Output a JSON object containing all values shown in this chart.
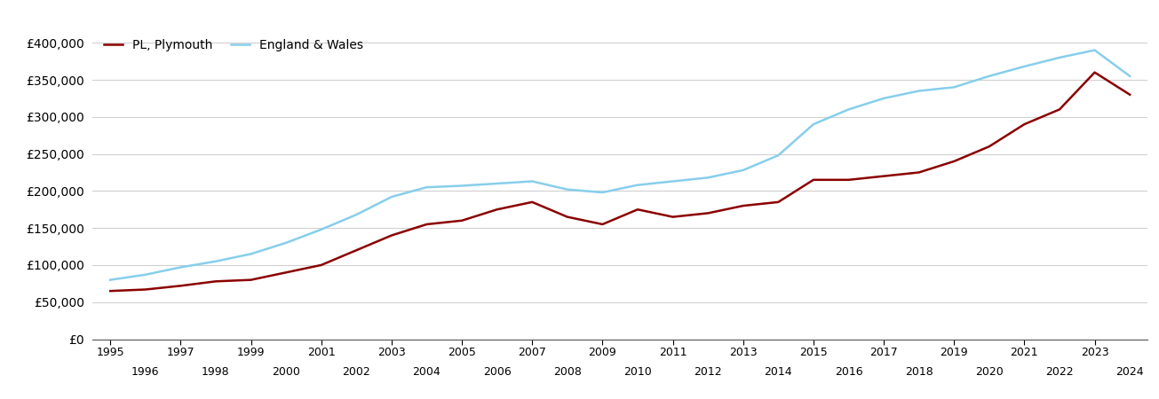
{
  "legend_labels": [
    "PL, Plymouth",
    "England & Wales"
  ],
  "colors": {
    "plymouth": "#8B0000",
    "england_wales": "#87CEEB"
  },
  "years": [
    1995,
    1996,
    1997,
    1998,
    1999,
    2000,
    2001,
    2002,
    2003,
    2004,
    2005,
    2006,
    2007,
    2008,
    2009,
    2010,
    2011,
    2012,
    2013,
    2014,
    2015,
    2016,
    2017,
    2018,
    2019,
    2020,
    2021,
    2022,
    2023,
    2024
  ],
  "plymouth_values": [
    65000,
    67000,
    72000,
    78000,
    80000,
    90000,
    100000,
    120000,
    140000,
    155000,
    160000,
    175000,
    185000,
    165000,
    155000,
    175000,
    165000,
    170000,
    180000,
    185000,
    215000,
    215000,
    220000,
    225000,
    240000,
    260000,
    290000,
    310000,
    360000,
    330000
  ],
  "england_wales_values": [
    80000,
    87000,
    97000,
    105000,
    115000,
    130000,
    148000,
    168000,
    192000,
    205000,
    207000,
    210000,
    213000,
    202000,
    198000,
    208000,
    213000,
    218000,
    228000,
    248000,
    290000,
    310000,
    325000,
    335000,
    340000,
    355000,
    368000,
    380000,
    390000,
    355000
  ],
  "ylim": [
    0,
    420000
  ],
  "yticks": [
    0,
    50000,
    100000,
    150000,
    200000,
    250000,
    300000,
    350000,
    400000
  ],
  "xlim": [
    1994.5,
    2024.5
  ],
  "xticks_odd": [
    1995,
    1997,
    1999,
    2001,
    2003,
    2005,
    2007,
    2009,
    2011,
    2013,
    2015,
    2017,
    2019,
    2021,
    2023
  ],
  "xticks_even": [
    1996,
    1998,
    2000,
    2002,
    2004,
    2006,
    2008,
    2010,
    2012,
    2014,
    2016,
    2018,
    2020,
    2022,
    2024
  ],
  "background_color": "#ffffff",
  "grid_color": "#d0d0d0",
  "line_width": 1.8
}
